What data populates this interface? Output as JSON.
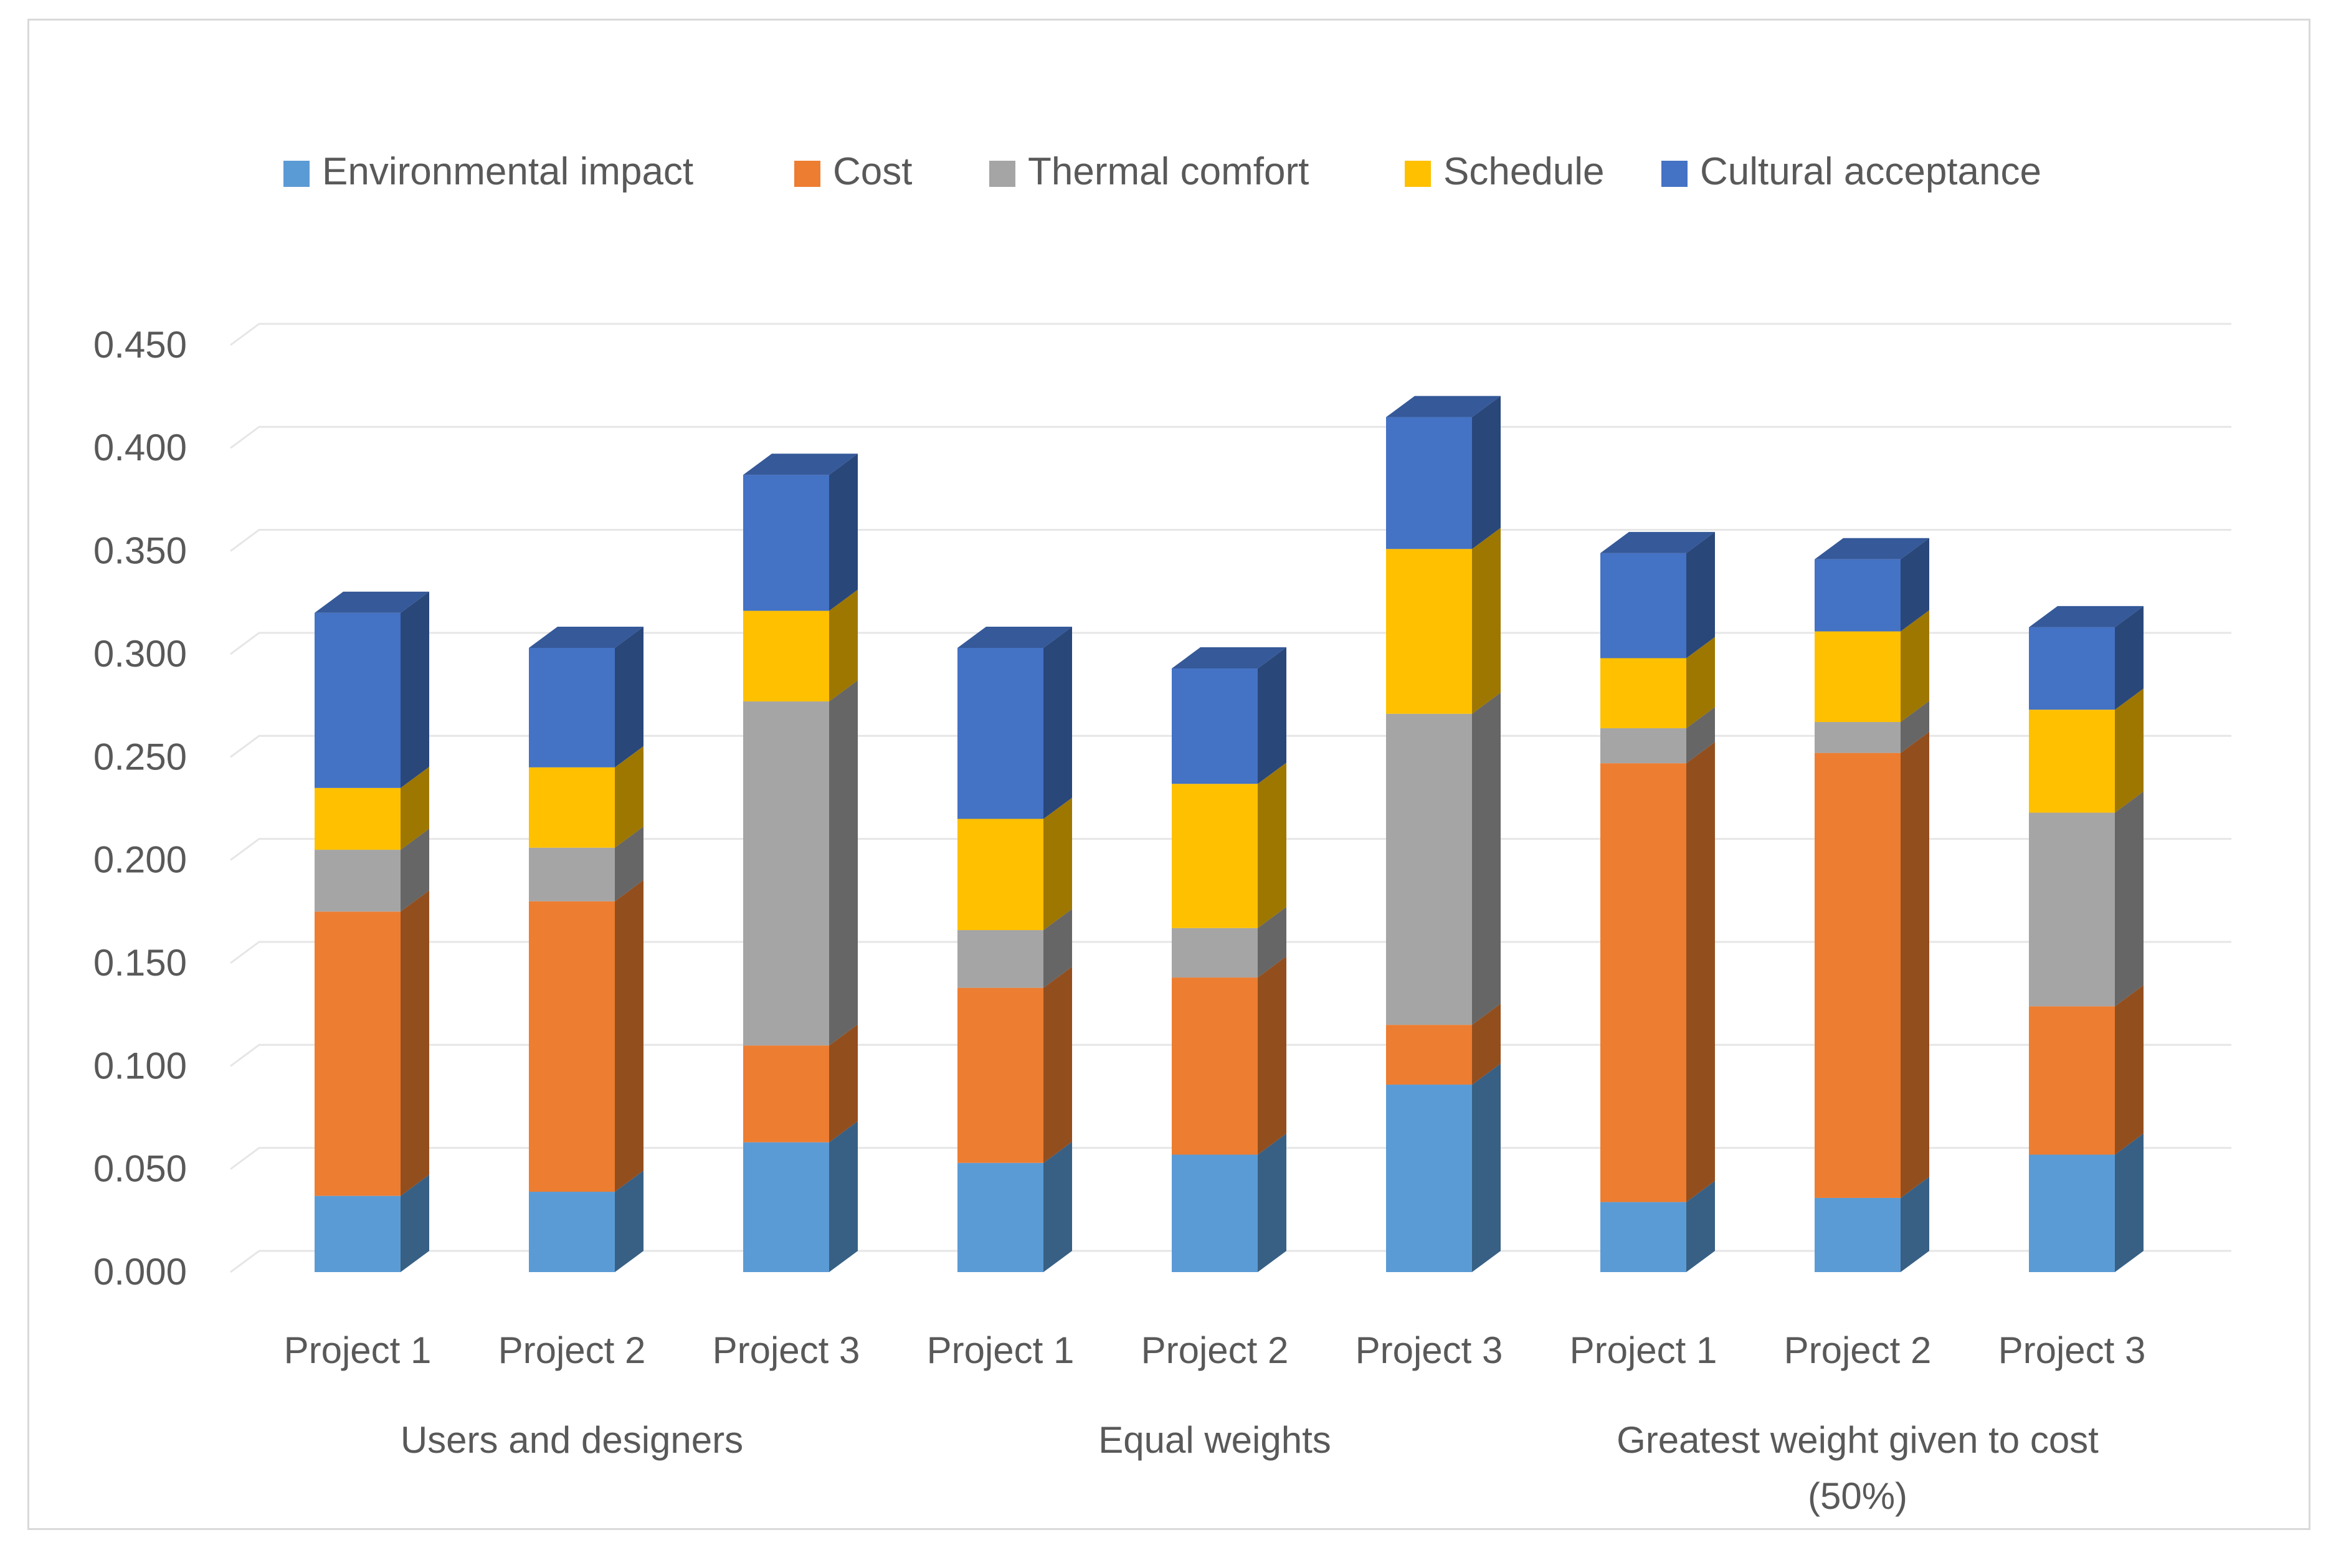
{
  "chart_data": {
    "type": "bar",
    "stacked": true,
    "title": "",
    "xlabel": "",
    "ylabel": "",
    "ylim": [
      0,
      0.45
    ],
    "yticks": [
      "0.000",
      "0.050",
      "0.100",
      "0.150",
      "0.200",
      "0.250",
      "0.300",
      "0.350",
      "0.400",
      "0.450"
    ],
    "grid": true,
    "legend_position": "top",
    "categories": [
      "Project 1",
      "Project 2",
      "Project 3",
      "Project 1",
      "Project 2",
      "Project 3",
      "Project 1",
      "Project 2",
      "Project 3"
    ],
    "groups": [
      {
        "label_lines": [
          "Users and designers"
        ],
        "start": 0,
        "count": 3
      },
      {
        "label_lines": [
          "Equal weights"
        ],
        "start": 3,
        "count": 3
      },
      {
        "label_lines": [
          "Greatest weight given to cost",
          "(50%)"
        ],
        "start": 6,
        "count": 3
      }
    ],
    "series": [
      {
        "name": "Environmental impact",
        "color": "#5b9bd5",
        "values": [
          0.037,
          0.039,
          0.063,
          0.053,
          0.057,
          0.091,
          0.034,
          0.036,
          0.057
        ]
      },
      {
        "name": "Cost",
        "color": "#ed7d31",
        "values": [
          0.138,
          0.141,
          0.047,
          0.085,
          0.086,
          0.029,
          0.213,
          0.216,
          0.072
        ]
      },
      {
        "name": "Thermal comfort",
        "color": "#a5a5a5",
        "values": [
          0.03,
          0.026,
          0.167,
          0.028,
          0.024,
          0.151,
          0.017,
          0.015,
          0.094
        ]
      },
      {
        "name": "Schedule",
        "color": "#ffc000",
        "values": [
          0.03,
          0.039,
          0.044,
          0.054,
          0.07,
          0.08,
          0.034,
          0.044,
          0.05
        ]
      },
      {
        "name": "Cultural acceptance",
        "color": "#4472c4",
        "values": [
          0.085,
          0.058,
          0.066,
          0.083,
          0.056,
          0.064,
          0.051,
          0.035,
          0.04
        ]
      }
    ]
  }
}
